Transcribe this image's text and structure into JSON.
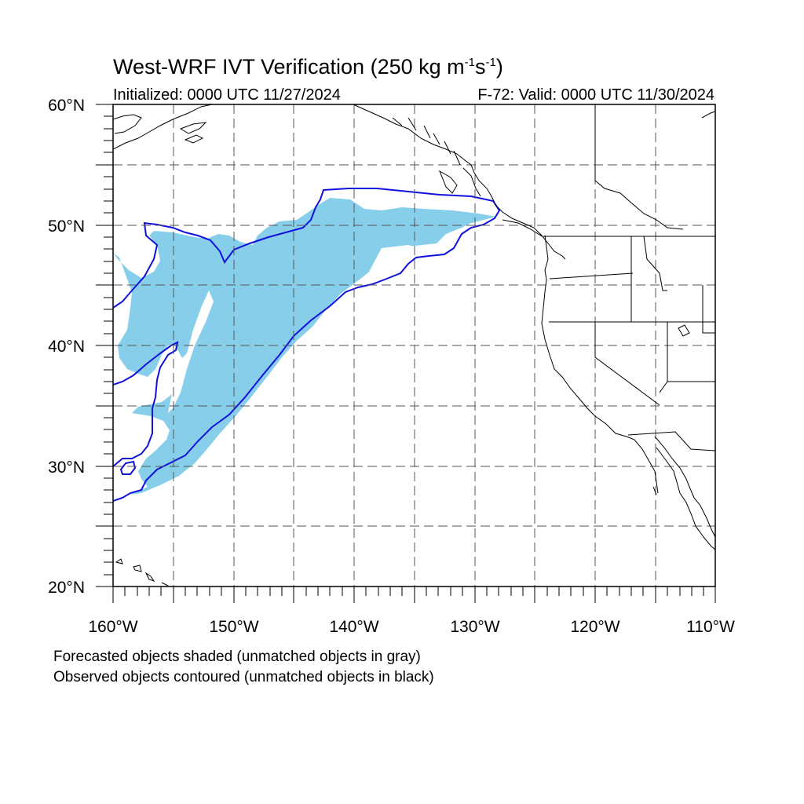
{
  "title": {
    "main": "West-WRF IVT Verification (250 kg m",
    "sup1": "-1",
    "mid": "s",
    "sup2": "-1",
    "end": ")"
  },
  "init_label": "Initialized: 0000 UTC 11/27/2024",
  "valid_label": "F-72: Valid: 0000 UTC 11/30/2024",
  "axes": {
    "lat_labels": [
      "60°N",
      "50°N",
      "40°N",
      "30°N",
      "20°N"
    ],
    "lon_labels": [
      "160°W",
      "150°W",
      "140°W",
      "130°W",
      "120°W",
      "110°W"
    ],
    "lat_range": [
      20,
      60
    ],
    "lon_range": [
      -160,
      -110
    ],
    "grid": "dashed every 5 degrees"
  },
  "legend": {
    "line1": "Forecasted objects shaded (unmatched objects in gray)",
    "line2": "Observed objects contoured (unmatched objects in black)"
  },
  "colors": {
    "forecast_fill": "#87ceeb",
    "observed_contour": "#1111dd",
    "coastline": "#000000",
    "grid": "#555555"
  }
}
